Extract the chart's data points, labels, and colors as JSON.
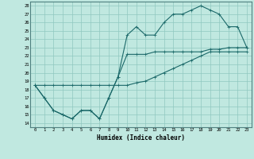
{
  "xlabel": "Humidex (Indice chaleur)",
  "bg_color": "#c0e8e0",
  "grid_color": "#90c8c0",
  "line_color": "#1a6868",
  "spine_color": "#508080",
  "xlim": [
    -0.5,
    23.5
  ],
  "ylim": [
    13.5,
    28.5
  ],
  "yticks": [
    14,
    15,
    16,
    17,
    18,
    19,
    20,
    21,
    22,
    23,
    24,
    25,
    26,
    27,
    28
  ],
  "xticks": [
    0,
    1,
    2,
    3,
    4,
    5,
    6,
    7,
    8,
    9,
    10,
    11,
    12,
    13,
    14,
    15,
    16,
    17,
    18,
    19,
    20,
    21,
    22,
    23
  ],
  "series1_x": [
    0,
    1,
    2,
    3,
    4,
    5,
    6,
    7,
    8,
    9,
    10,
    11,
    12,
    13,
    14,
    15,
    16,
    17,
    18,
    19,
    20,
    21,
    22,
    23
  ],
  "series1_y": [
    18.5,
    17.0,
    15.5,
    15.0,
    14.5,
    15.5,
    15.5,
    14.5,
    17.0,
    19.5,
    24.5,
    25.5,
    24.5,
    24.5,
    26.0,
    27.0,
    27.0,
    27.5,
    28.0,
    27.5,
    27.0,
    25.5,
    25.5,
    23.0
  ],
  "series2_x": [
    0,
    1,
    2,
    3,
    4,
    5,
    6,
    7,
    8,
    9,
    10,
    11,
    12,
    13,
    14,
    15,
    16,
    17,
    18,
    19,
    20,
    21,
    22,
    23
  ],
  "series2_y": [
    18.5,
    17.0,
    15.5,
    15.0,
    14.5,
    15.5,
    15.5,
    14.5,
    17.0,
    19.5,
    22.2,
    22.2,
    22.2,
    22.5,
    22.5,
    22.5,
    22.5,
    22.5,
    22.5,
    22.8,
    22.8,
    23.0,
    23.0,
    23.0
  ],
  "series3_x": [
    0,
    1,
    2,
    3,
    4,
    5,
    6,
    7,
    8,
    9,
    10,
    11,
    12,
    13,
    14,
    15,
    16,
    17,
    18,
    19,
    20,
    21,
    22,
    23
  ],
  "series3_y": [
    18.5,
    18.5,
    18.5,
    18.5,
    18.5,
    18.5,
    18.5,
    18.5,
    18.5,
    18.5,
    18.5,
    18.8,
    19.0,
    19.5,
    20.0,
    20.5,
    21.0,
    21.5,
    22.0,
    22.5,
    22.5,
    22.5,
    22.5,
    22.5
  ]
}
